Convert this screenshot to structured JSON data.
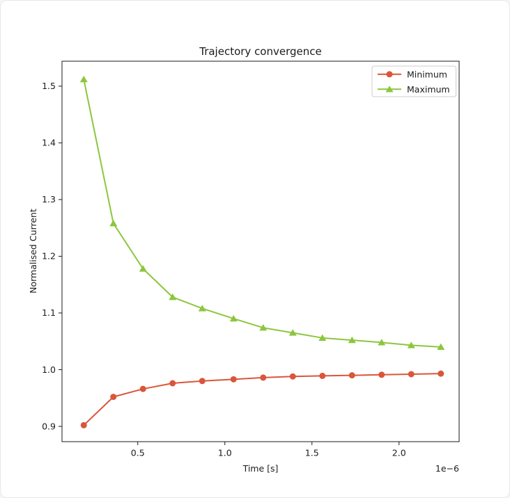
{
  "chart_data": {
    "type": "line",
    "title": "Trajectory convergence",
    "xlabel": "Time [s]",
    "ylabel": "Normalised Current",
    "x_offset_label": "1e−6",
    "x_unit": "microseconds (axis values are ×1e-6 s)",
    "x": [
      0.19,
      0.36,
      0.53,
      0.7,
      0.87,
      1.05,
      1.22,
      1.39,
      1.56,
      1.73,
      1.9,
      2.07,
      2.24
    ],
    "series": [
      {
        "name": "Minimum",
        "marker": "circle",
        "color": "#d9563b",
        "values": [
          0.902,
          0.952,
          0.966,
          0.976,
          0.98,
          0.983,
          0.986,
          0.988,
          0.989,
          0.99,
          0.991,
          0.992,
          0.993
        ]
      },
      {
        "name": "Maximum",
        "marker": "triangle",
        "color": "#8cc63e",
        "values": [
          1.512,
          1.258,
          1.178,
          1.128,
          1.108,
          1.09,
          1.074,
          1.065,
          1.056,
          1.052,
          1.048,
          1.043,
          1.04
        ]
      }
    ],
    "xlim": [
      0.065,
      2.345
    ],
    "ylim": [
      0.873,
      1.544
    ],
    "xticks": {
      "values": [
        0.5,
        1.0,
        1.5,
        2.0
      ],
      "labels": [
        "0.5",
        "1.0",
        "1.5",
        "2.0"
      ]
    },
    "yticks": {
      "values": [
        0.9,
        1.0,
        1.1,
        1.2,
        1.3,
        1.4,
        1.5
      ],
      "labels": [
        "0.9",
        "1.0",
        "1.1",
        "1.2",
        "1.3",
        "1.4",
        "1.5"
      ]
    },
    "grid": false,
    "legend": {
      "position": "upper-right",
      "entries": [
        "Minimum",
        "Maximum"
      ]
    }
  },
  "style": {
    "background": "#ffffff",
    "axis_color": "#1a1a1a",
    "text_color": "#1a1a1a",
    "legend_border_color": "#cccccc",
    "legend_fill_color": "#ffffff"
  }
}
